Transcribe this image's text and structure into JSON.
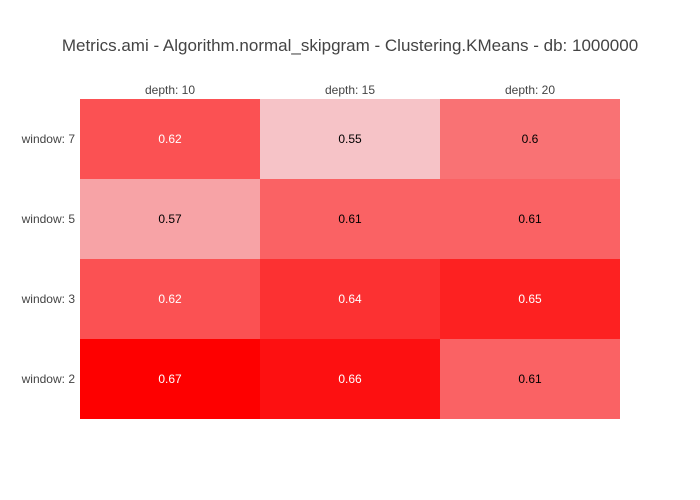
{
  "chart_data": {
    "type": "heatmap",
    "title": "Metrics.ami - Algorithm.normal_skipgram - Clustering.KMeans - db: 1000000",
    "x_labels": [
      "depth: 10",
      "depth: 15",
      "depth: 20"
    ],
    "y_labels": [
      "window: 7",
      "window: 5",
      "window: 3",
      "window: 2"
    ],
    "values": [
      [
        0.62,
        0.55,
        0.6
      ],
      [
        0.57,
        0.61,
        0.61
      ],
      [
        0.62,
        0.64,
        0.65
      ],
      [
        0.67,
        0.66,
        0.61
      ]
    ],
    "zmin": 0.55,
    "zmax": 0.67,
    "colorscale_min": "#f6c3c7",
    "colorscale_max": "#fe0000",
    "cell_text_light": "#ffffff",
    "cell_text_dark": "#000000",
    "label_color": "#444444",
    "background": "#ffffff",
    "x_axis_side": "top",
    "grid_lines": "off",
    "legend": "none"
  }
}
